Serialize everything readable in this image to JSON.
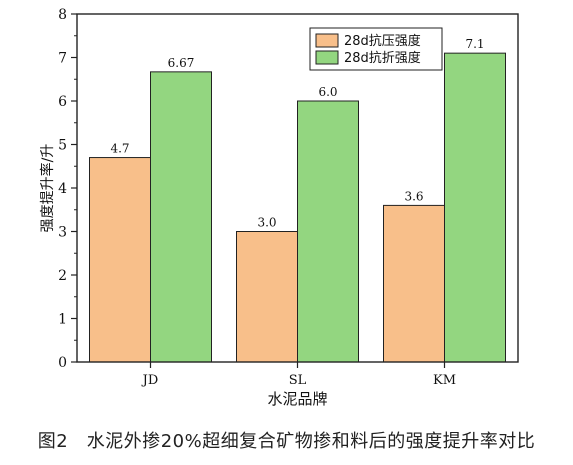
{
  "chart_data": {
    "type": "bar",
    "categories": [
      "JD",
      "SL",
      "KM"
    ],
    "series": [
      {
        "name": "28d抗压强度",
        "values": [
          4.7,
          3.0,
          3.6
        ],
        "labels": [
          "4.7",
          "3.0",
          "3.6"
        ],
        "color": "#f8bf8a"
      },
      {
        "name": "28d抗折强度",
        "values": [
          6.67,
          6.0,
          7.1
        ],
        "labels": [
          "6.67",
          "6.0",
          "7.1"
        ],
        "color": "#93d680"
      }
    ],
    "xlabel": "水泥品牌",
    "ylabel": "强度提升率/升",
    "ylim": [
      0,
      8
    ],
    "yticks": [
      0,
      1,
      2,
      3,
      4,
      5,
      6,
      7,
      8
    ],
    "legend": "top-right",
    "grid": false
  },
  "caption": "图2　水泥外掺20%超细复合矿物掺和料后的强度提升率对比"
}
